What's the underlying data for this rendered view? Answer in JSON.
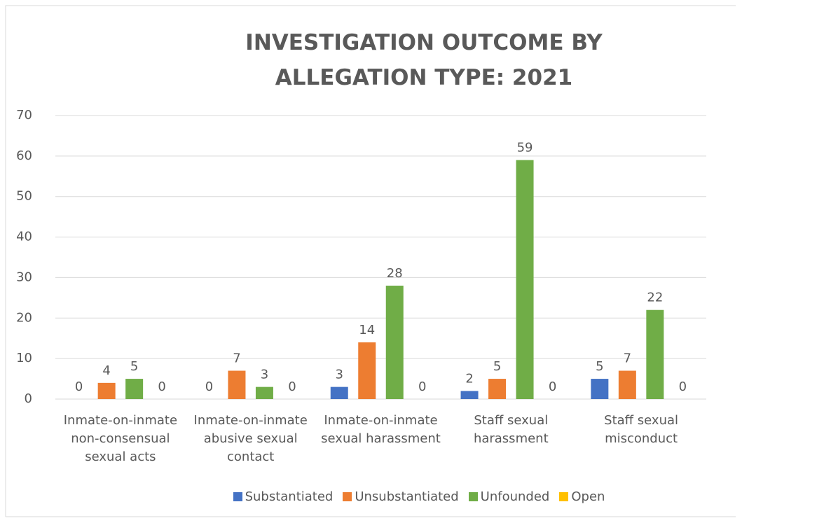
{
  "chart_data": {
    "type": "bar",
    "title": "INVESTIGATION OUTCOME BY ALLEGATION TYPE: 2021",
    "categories": [
      "Inmate-on-inmate non-consensual sexual acts",
      "Inmate-on-inmate abusive sexual contact",
      "Inmate-on-inmate sexual harassment",
      "Staff sexual harassment",
      "Staff sexual misconduct"
    ],
    "series": [
      {
        "name": "Substantiated",
        "color": "#4472c4",
        "values": [
          0,
          0,
          3,
          2,
          5
        ]
      },
      {
        "name": "Unsubstantiated",
        "color": "#ed7d31",
        "values": [
          4,
          7,
          14,
          5,
          7
        ]
      },
      {
        "name": "Unfounded",
        "color": "#70ad47",
        "values": [
          5,
          3,
          28,
          59,
          22
        ]
      },
      {
        "name": "Open",
        "color": "#ffc000",
        "values": [
          0,
          0,
          0,
          0,
          0
        ]
      }
    ],
    "ylim": [
      0,
      70
    ],
    "yticks": [
      0,
      10,
      20,
      30,
      40,
      50,
      60,
      70
    ],
    "grid": true,
    "legend": "bottom"
  }
}
